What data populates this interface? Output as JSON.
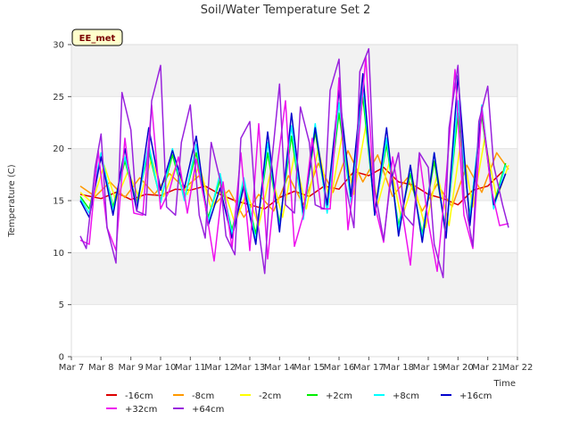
{
  "chart_data": {
    "type": "line",
    "title": "Soil/Water Temperature Set 2",
    "xlabel": "Time",
    "ylabel": "Temperature (C)",
    "badge": "EE_met",
    "ylim": [
      0,
      30
    ],
    "xlim": [
      0,
      15
    ],
    "yticks": [
      0,
      5,
      10,
      15,
      20,
      25,
      30
    ],
    "xticks": [
      {
        "x": 0,
        "label": "Mar 7"
      },
      {
        "x": 1,
        "label": "Mar 8"
      },
      {
        "x": 2,
        "label": "Mar 9"
      },
      {
        "x": 3,
        "label": "Mar 10"
      },
      {
        "x": 4,
        "label": "Mar 11"
      },
      {
        "x": 5,
        "label": "Mar 12"
      },
      {
        "x": 6,
        "label": "Mar 13"
      },
      {
        "x": 7,
        "label": "Mar 14"
      },
      {
        "x": 8,
        "label": "Mar 15"
      },
      {
        "x": 9,
        "label": "Mar 16"
      },
      {
        "x": 10,
        "label": "Mar 17"
      },
      {
        "x": 11,
        "label": "Mar 18"
      },
      {
        "x": 12,
        "label": "Mar 19"
      },
      {
        "x": 13,
        "label": "Mar 20"
      },
      {
        "x": 14,
        "label": "Mar 21"
      },
      {
        "x": 15,
        "label": "Mar 22"
      }
    ],
    "grid": "horizontal bands",
    "legend_position": "bottom",
    "x_note": "x values are days since Mar 7 00:00",
    "series": [
      {
        "name": "-16cm",
        "color": "#dd0000",
        "x": [
          0.3,
          1,
          1.5,
          2,
          2.5,
          3,
          3.5,
          4,
          4.5,
          5,
          5.5,
          6,
          6.5,
          7,
          7.5,
          8,
          8.5,
          9,
          9.5,
          10,
          10.5,
          11,
          11.5,
          12,
          12.5,
          13,
          13.5,
          14,
          14.5
        ],
        "y": [
          15.6,
          15.2,
          15.8,
          15.1,
          15.6,
          15.5,
          16.1,
          16.0,
          16.4,
          15.6,
          15.0,
          14.6,
          14.2,
          15.3,
          15.9,
          15.4,
          16.4,
          16.1,
          17.8,
          17.4,
          18.2,
          16.8,
          16.5,
          15.6,
          15.2,
          14.6,
          16.0,
          16.4,
          17.8
        ]
      },
      {
        "name": "-8cm",
        "color": "#ff9900",
        "x": [
          0.3,
          0.8,
          1.3,
          1.8,
          2.3,
          2.8,
          3.3,
          3.8,
          4.3,
          4.8,
          5.3,
          5.8,
          6.3,
          6.8,
          7.3,
          7.8,
          8.3,
          8.8,
          9.3,
          9.8,
          10.3,
          10.8,
          11.3,
          11.8,
          12.3,
          12.8,
          13.3,
          13.8,
          14.3,
          14.7
        ],
        "y": [
          16.4,
          15.4,
          16.8,
          15.3,
          17.2,
          15.6,
          17.6,
          16.2,
          17.4,
          14.6,
          16.0,
          13.4,
          15.6,
          14.0,
          17.4,
          14.6,
          18.6,
          15.8,
          19.8,
          16.8,
          19.4,
          15.4,
          17.2,
          14.0,
          16.6,
          14.4,
          18.4,
          15.8,
          19.6,
          18.0
        ]
      },
      {
        "name": "-2cm",
        "color": "#ffff00",
        "x": [
          0.3,
          0.7,
          1.1,
          1.5,
          1.9,
          2.3,
          2.7,
          3.1,
          3.5,
          3.9,
          4.3,
          4.7,
          5.1,
          5.5,
          5.9,
          6.3,
          6.7,
          7.1,
          7.5,
          7.9,
          8.3,
          8.7,
          9.1,
          9.5,
          9.9,
          10.3,
          10.7,
          11.1,
          11.5,
          11.9,
          12.3,
          12.7,
          13.1,
          13.5,
          13.9,
          14.3,
          14.7
        ],
        "y": [
          15.8,
          14.8,
          18.4,
          15.0,
          17.8,
          15.2,
          19.0,
          15.4,
          18.2,
          15.6,
          18.4,
          14.2,
          16.4,
          12.8,
          15.8,
          12.6,
          17.8,
          13.4,
          19.4,
          14.2,
          20.0,
          14.8,
          21.2,
          15.6,
          22.2,
          14.6,
          18.8,
          13.2,
          16.8,
          12.4,
          17.6,
          12.6,
          20.8,
          14.4,
          21.0,
          15.2,
          18.4
        ]
      },
      {
        "name": "+2cm",
        "color": "#00ee00",
        "x": [
          0.3,
          0.6,
          1.0,
          1.4,
          1.8,
          2.2,
          2.6,
          3.0,
          3.4,
          3.8,
          4.2,
          4.6,
          5.0,
          5.4,
          5.8,
          6.2,
          6.6,
          7.0,
          7.4,
          7.8,
          8.2,
          8.6,
          9.0,
          9.4,
          9.8,
          10.2,
          10.6,
          11.0,
          11.4,
          11.8,
          12.2,
          12.6,
          13.0,
          13.4,
          13.8,
          14.2,
          14.6
        ],
        "y": [
          15.4,
          14.2,
          19.2,
          14.4,
          18.8,
          14.8,
          19.8,
          15.0,
          19.4,
          15.2,
          19.6,
          13.4,
          17.0,
          12.2,
          16.6,
          11.8,
          19.6,
          12.8,
          21.2,
          13.6,
          21.6,
          14.2,
          23.4,
          15.0,
          25.0,
          14.0,
          20.4,
          12.6,
          17.6,
          11.8,
          18.8,
          12.0,
          23.4,
          13.6,
          23.2,
          14.6,
          18.6
        ]
      },
      {
        "name": "+8cm",
        "color": "#00ffff",
        "x": [
          0.3,
          0.6,
          1.0,
          1.4,
          1.8,
          2.2,
          2.6,
          3.0,
          3.4,
          3.8,
          4.2,
          4.6,
          5.0,
          5.4,
          5.8,
          6.2,
          6.6,
          7.0,
          7.4,
          7.8,
          8.2,
          8.6,
          9.0,
          9.4,
          9.8,
          10.2,
          10.6,
          11.0,
          11.4,
          11.8,
          12.2,
          12.6,
          13.0,
          13.4,
          13.8,
          14.2,
          14.6
        ],
        "y": [
          15.2,
          13.8,
          19.6,
          14.0,
          19.2,
          14.4,
          20.4,
          14.8,
          20.0,
          15.0,
          20.4,
          13.0,
          17.6,
          11.8,
          17.2,
          11.2,
          20.6,
          12.4,
          22.2,
          13.2,
          22.4,
          13.8,
          24.4,
          14.8,
          26.2,
          13.6,
          21.0,
          12.2,
          18.2,
          11.4,
          19.6,
          11.6,
          24.6,
          13.2,
          24.2,
          14.2,
          18.4
        ]
      },
      {
        "name": "+16cm",
        "color": "#0000cc",
        "x": [
          0.3,
          0.6,
          1.0,
          1.4,
          1.8,
          2.2,
          2.6,
          3.0,
          3.4,
          3.8,
          4.2,
          4.6,
          5.0,
          5.4,
          5.8,
          6.2,
          6.6,
          7.0,
          7.4,
          7.8,
          8.2,
          8.6,
          9.0,
          9.4,
          9.8,
          10.2,
          10.6,
          11.0,
          11.4,
          11.8,
          12.2,
          12.6,
          13.0,
          13.4,
          13.8,
          14.2,
          14.6
        ],
        "y": [
          15.0,
          13.4,
          19.2,
          13.6,
          20.0,
          14.0,
          22.0,
          16.0,
          19.8,
          16.2,
          21.2,
          12.6,
          16.2,
          11.4,
          16.4,
          10.8,
          21.6,
          12.0,
          23.4,
          13.8,
          22.0,
          14.6,
          25.6,
          15.4,
          27.2,
          13.6,
          22.0,
          11.6,
          18.4,
          11.0,
          19.6,
          11.4,
          27.0,
          12.6,
          23.8,
          14.6,
          17.6
        ]
      },
      {
        "name": "+32cm",
        "color": "#ee11ee",
        "x": [
          0.3,
          0.6,
          0.9,
          1.2,
          1.5,
          1.8,
          2.1,
          2.4,
          2.7,
          3.0,
          3.3,
          3.6,
          3.9,
          4.2,
          4.5,
          4.8,
          5.1,
          5.4,
          5.7,
          6.0,
          6.3,
          6.6,
          6.9,
          7.2,
          7.5,
          7.8,
          8.1,
          8.4,
          8.7,
          9.0,
          9.3,
          9.6,
          9.9,
          10.2,
          10.5,
          10.8,
          11.1,
          11.4,
          11.7,
          12.0,
          12.3,
          12.6,
          12.9,
          13.2,
          13.5,
          13.8,
          14.1,
          14.4,
          14.7
        ],
        "y": [
          11.2,
          10.8,
          19.8,
          12.4,
          10.2,
          21.0,
          13.8,
          13.6,
          24.2,
          14.2,
          16.0,
          19.2,
          13.8,
          19.0,
          14.6,
          9.2,
          16.8,
          10.4,
          19.6,
          10.2,
          22.4,
          9.4,
          17.8,
          24.6,
          10.6,
          13.6,
          21.0,
          14.2,
          14.2,
          26.8,
          12.2,
          18.8,
          28.8,
          14.6,
          11.0,
          19.2,
          14.4,
          8.8,
          19.4,
          13.0,
          8.2,
          17.2,
          27.6,
          13.6,
          10.4,
          24.0,
          16.4,
          12.6,
          12.8
        ]
      },
      {
        "name": "+64cm",
        "color": "#9922dd",
        "x": [
          0.3,
          0.5,
          0.8,
          1.0,
          1.2,
          1.5,
          1.7,
          2.0,
          2.2,
          2.5,
          2.7,
          3.0,
          3.2,
          3.5,
          3.7,
          4.0,
          4.3,
          4.5,
          4.7,
          5.0,
          5.2,
          5.5,
          5.7,
          6.0,
          6.2,
          6.5,
          6.7,
          7.0,
          7.2,
          7.5,
          7.7,
          8.0,
          8.2,
          8.5,
          8.7,
          9.0,
          9.2,
          9.5,
          9.7,
          10.0,
          10.2,
          10.5,
          10.7,
          11.0,
          11.2,
          11.5,
          11.7,
          12.0,
          12.2,
          12.5,
          12.7,
          13.0,
          13.2,
          13.5,
          13.7,
          14.0,
          14.2,
          14.5,
          14.7
        ],
        "y": [
          11.6,
          10.4,
          18.2,
          21.4,
          12.4,
          9.0,
          25.4,
          21.8,
          14.0,
          13.6,
          24.6,
          28.0,
          14.4,
          13.6,
          20.6,
          24.2,
          13.6,
          11.4,
          20.6,
          17.0,
          11.6,
          9.8,
          21.0,
          22.6,
          14.2,
          8.0,
          17.6,
          26.2,
          14.6,
          13.8,
          24.0,
          20.6,
          14.6,
          14.2,
          25.6,
          28.6,
          16.8,
          12.4,
          27.4,
          29.6,
          16.0,
          11.2,
          16.2,
          19.6,
          13.6,
          12.6,
          19.6,
          18.2,
          10.8,
          7.6,
          22.0,
          28.0,
          15.4,
          10.6,
          22.6,
          26.0,
          18.4,
          14.6,
          12.4
        ]
      }
    ]
  }
}
